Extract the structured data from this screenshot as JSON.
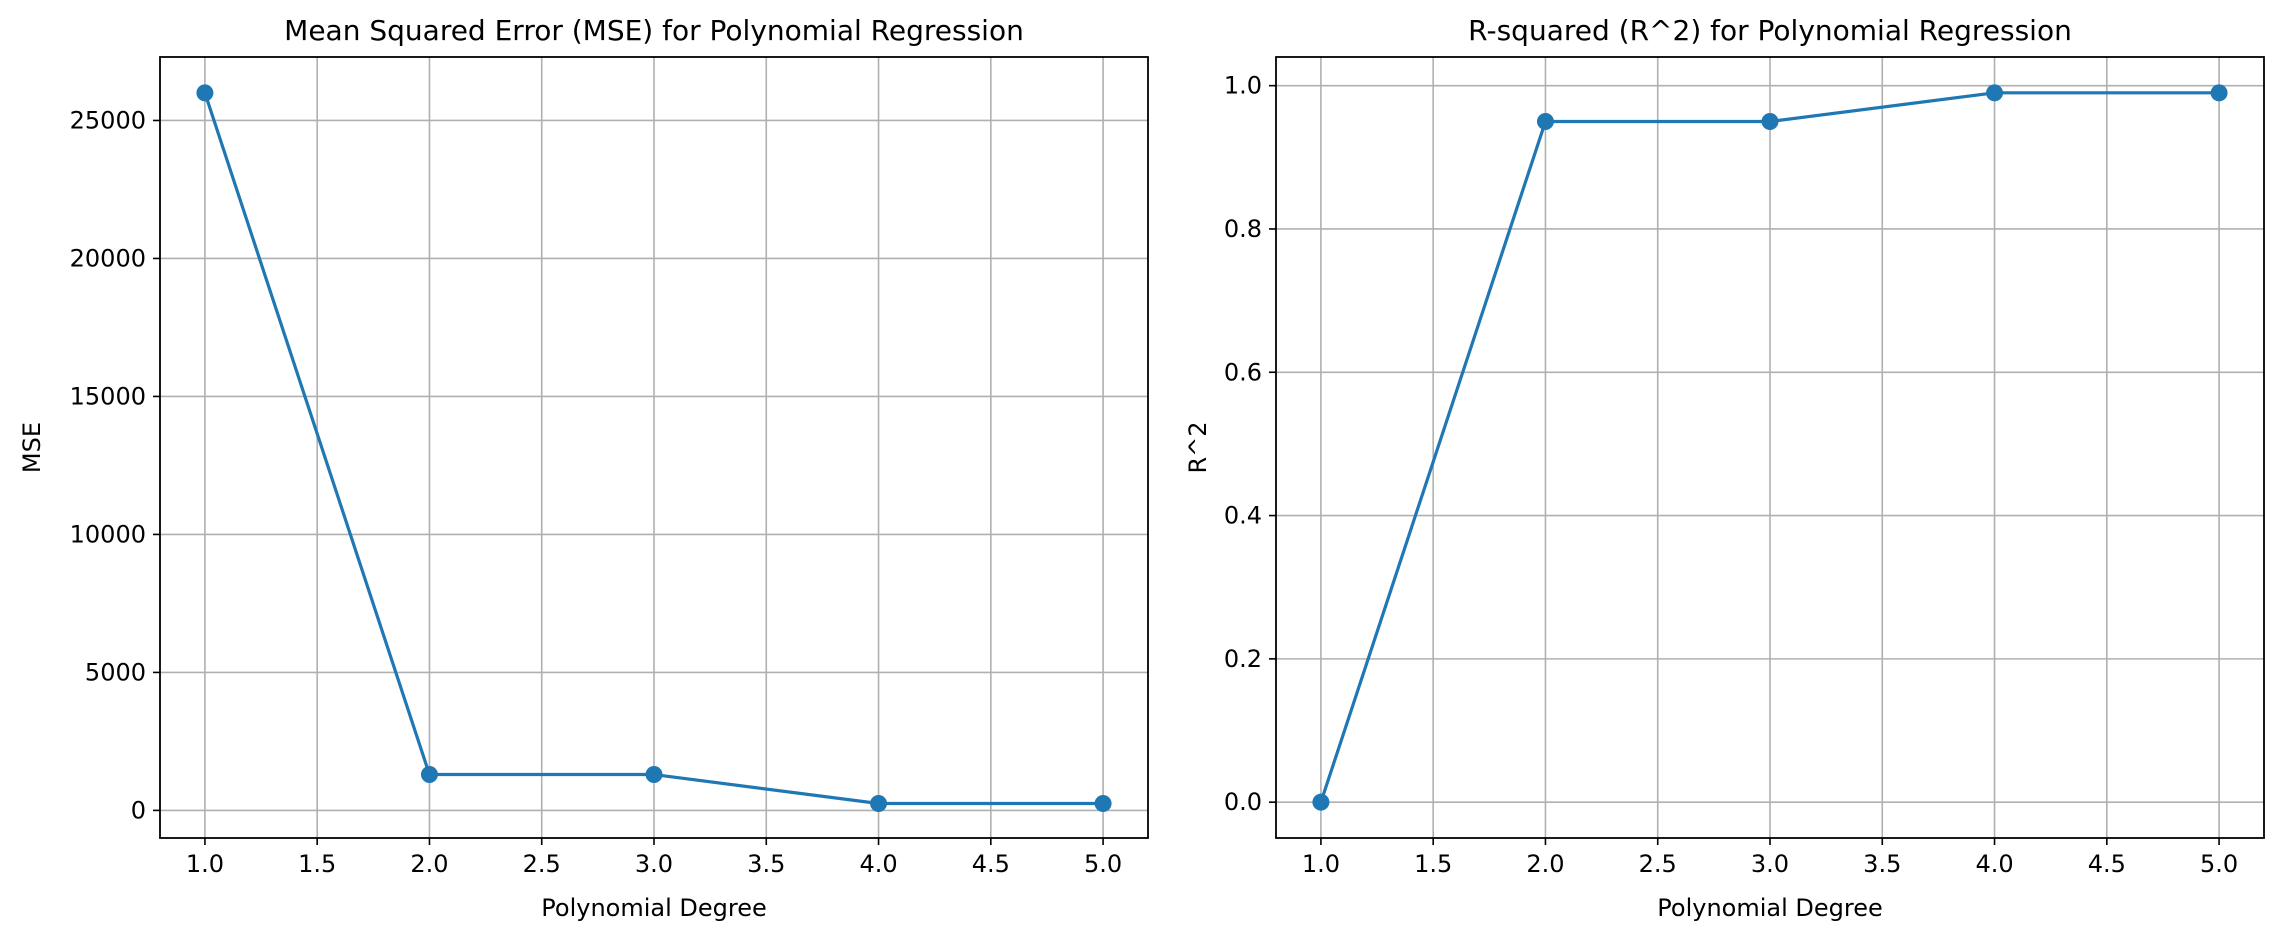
{
  "chart_data": [
    {
      "type": "line",
      "title": "Mean Squared Error (MSE) for Polynomial Regression",
      "xlabel": "Polynomial Degree",
      "ylabel": "MSE",
      "x": [
        1.0,
        2.0,
        3.0,
        4.0,
        5.0
      ],
      "series": [
        {
          "values": [
            26000,
            1300,
            1300,
            250,
            250
          ]
        }
      ],
      "xlim": [
        0.8,
        5.2
      ],
      "ylim": [
        -1000,
        27300
      ],
      "xticks": [
        1.0,
        1.5,
        2.0,
        2.5,
        3.0,
        3.5,
        4.0,
        4.5,
        5.0
      ],
      "xtick_labels": [
        "1.0",
        "1.5",
        "2.0",
        "2.5",
        "3.0",
        "3.5",
        "4.0",
        "4.5",
        "5.0"
      ],
      "yticks": [
        0,
        5000,
        10000,
        15000,
        20000,
        25000
      ],
      "ytick_labels": [
        "0",
        "5000",
        "10000",
        "15000",
        "20000",
        "25000"
      ],
      "grid": true,
      "marker": "circle",
      "line_color": "#1f77b4",
      "grid_color": "#b0b0b0"
    },
    {
      "type": "line",
      "title": "R-squared (R^2) for Polynomial Regression",
      "xlabel": "Polynomial Degree",
      "ylabel": "R^2",
      "x": [
        1.0,
        2.0,
        3.0,
        4.0,
        5.0
      ],
      "series": [
        {
          "values": [
            0.0,
            0.95,
            0.95,
            0.99,
            0.99
          ]
        }
      ],
      "xlim": [
        0.8,
        5.2
      ],
      "ylim": [
        -0.05,
        1.04
      ],
      "xticks": [
        1.0,
        1.5,
        2.0,
        2.5,
        3.0,
        3.5,
        4.0,
        4.5,
        5.0
      ],
      "xtick_labels": [
        "1.0",
        "1.5",
        "2.0",
        "2.5",
        "3.0",
        "3.5",
        "4.0",
        "4.5",
        "5.0"
      ],
      "yticks": [
        0.0,
        0.2,
        0.4,
        0.6,
        0.8,
        1.0
      ],
      "ytick_labels": [
        "0.0",
        "0.2",
        "0.4",
        "0.6",
        "0.8",
        "1.0"
      ],
      "grid": true,
      "marker": "circle",
      "line_color": "#1f77b4",
      "grid_color": "#b0b0b0"
    }
  ]
}
